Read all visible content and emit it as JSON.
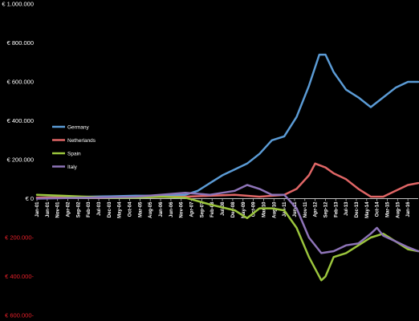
{
  "chart_data": {
    "type": "line",
    "title": "",
    "xlabel": "",
    "ylabel": "",
    "ylim": [
      -600000,
      1000000
    ],
    "grid": false,
    "legend_position": "left",
    "y_ticks": [
      {
        "value": 1000000,
        "label": "€ 1.000.000",
        "color": "#ffffff"
      },
      {
        "value": 800000,
        "label": "€ 800.000",
        "color": "#ffffff"
      },
      {
        "value": 600000,
        "label": "€ 600.000",
        "color": "#ffffff"
      },
      {
        "value": 400000,
        "label": "€ 400.000",
        "color": "#ffffff"
      },
      {
        "value": 200000,
        "label": "€ 200.000",
        "color": "#ffffff"
      },
      {
        "value": 0,
        "label": "€ 0",
        "color": "#ffffff"
      },
      {
        "value": -200000,
        "label": "€ 200.000-",
        "color": "#e8202a"
      },
      {
        "value": -400000,
        "label": "€ 400.000-",
        "color": "#e8202a"
      },
      {
        "value": -600000,
        "label": "€ 600.000-",
        "color": "#e8202a"
      }
    ],
    "x_ticks": [
      "Jan-01",
      "Jun-01",
      "Nov-01",
      "Apr-02",
      "Sep-02",
      "Feb-03",
      "Jul-03",
      "Dec-03",
      "May-04",
      "Oct-04",
      "Mar-05",
      "Aug-05",
      "Jan-06",
      "Jun-06",
      "Nov-06",
      "Apr-07",
      "Sep-07",
      "Feb-08",
      "Jul-08",
      "Dec-08",
      "May-09",
      "Oct-09",
      "Mar-10",
      "Aug-10",
      "Jan-11",
      "Jun-11",
      "Nov-11",
      "Apr-12",
      "Sep-12",
      "Feb-13",
      "Jul-13",
      "Dec-13",
      "May-14",
      "Oct-14",
      "Mar-15",
      "Aug-15",
      "Jan-16"
    ],
    "x_start": "Jan-01",
    "x_end": "Jun-16",
    "series": [
      {
        "name": "Germany",
        "color": "#5b9bd5",
        "points": [
          [
            "Jan-01",
            5000
          ],
          [
            "Jan-02",
            8000
          ],
          [
            "Jan-03",
            10000
          ],
          [
            "Jan-04",
            12000
          ],
          [
            "Jan-05",
            15000
          ],
          [
            "Jan-06",
            15000
          ],
          [
            "Jan-07",
            20000
          ],
          [
            "Jul-07",
            40000
          ],
          [
            "Jan-08",
            80000
          ],
          [
            "Jul-08",
            120000
          ],
          [
            "Jan-09",
            150000
          ],
          [
            "Jul-09",
            180000
          ],
          [
            "Jan-10",
            230000
          ],
          [
            "Jul-10",
            300000
          ],
          [
            "Jan-11",
            320000
          ],
          [
            "Jul-11",
            420000
          ],
          [
            "Jan-12",
            580000
          ],
          [
            "Jun-12",
            740000
          ],
          [
            "Sep-12",
            740000
          ],
          [
            "Jan-13",
            650000
          ],
          [
            "Jul-13",
            560000
          ],
          [
            "Jan-14",
            520000
          ],
          [
            "Jul-14",
            470000
          ],
          [
            "Jan-15",
            520000
          ],
          [
            "Jul-15",
            570000
          ],
          [
            "Jan-16",
            600000
          ],
          [
            "Jun-16",
            600000
          ]
        ]
      },
      {
        "name": "Netherlands",
        "color": "#e06666",
        "points": [
          [
            "Jan-01",
            5000
          ],
          [
            "Jan-03",
            5000
          ],
          [
            "Jan-05",
            8000
          ],
          [
            "Jan-07",
            10000
          ],
          [
            "Jan-08",
            15000
          ],
          [
            "Jan-09",
            20000
          ],
          [
            "Jan-10",
            10000
          ],
          [
            "Jan-11",
            20000
          ],
          [
            "Jul-11",
            50000
          ],
          [
            "Jan-12",
            120000
          ],
          [
            "Apr-12",
            180000
          ],
          [
            "Sep-12",
            160000
          ],
          [
            "Jan-13",
            130000
          ],
          [
            "Jul-13",
            100000
          ],
          [
            "Jan-14",
            50000
          ],
          [
            "Jul-14",
            10000
          ],
          [
            "Jan-15",
            10000
          ],
          [
            "Jul-15",
            40000
          ],
          [
            "Jan-16",
            70000
          ],
          [
            "Jun-16",
            80000
          ]
        ]
      },
      {
        "name": "Spain",
        "color": "#9bc53d",
        "points": [
          [
            "Jan-01",
            20000
          ],
          [
            "Jan-02",
            15000
          ],
          [
            "Jan-03",
            10000
          ],
          [
            "Jan-04",
            5000
          ],
          [
            "Jan-05",
            5000
          ],
          [
            "Jan-06",
            10000
          ],
          [
            "Jan-07",
            5000
          ],
          [
            "Jan-08",
            -30000
          ],
          [
            "Jan-09",
            -60000
          ],
          [
            "Jul-09",
            -100000
          ],
          [
            "Jan-10",
            -50000
          ],
          [
            "Jul-10",
            -50000
          ],
          [
            "Jan-11",
            -60000
          ],
          [
            "Jul-11",
            -150000
          ],
          [
            "Jan-12",
            -300000
          ],
          [
            "Jul-12",
            -420000
          ],
          [
            "Sep-12",
            -400000
          ],
          [
            "Jan-13",
            -300000
          ],
          [
            "Jul-13",
            -280000
          ],
          [
            "Jan-14",
            -240000
          ],
          [
            "Jul-14",
            -200000
          ],
          [
            "Jan-15",
            -180000
          ],
          [
            "Jul-15",
            -220000
          ],
          [
            "Jan-16",
            -260000
          ],
          [
            "Jun-16",
            -270000
          ]
        ]
      },
      {
        "name": "Italy",
        "color": "#8e74b8",
        "points": [
          [
            "Jan-01",
            0
          ],
          [
            "Jan-03",
            5000
          ],
          [
            "Jan-05",
            10000
          ],
          [
            "Jan-06",
            20000
          ],
          [
            "Jan-07",
            30000
          ],
          [
            "Jan-08",
            20000
          ],
          [
            "Jan-09",
            40000
          ],
          [
            "Jul-09",
            70000
          ],
          [
            "Jan-10",
            50000
          ],
          [
            "Jul-10",
            20000
          ],
          [
            "Jan-11",
            20000
          ],
          [
            "Jul-11",
            -50000
          ],
          [
            "Jan-12",
            -200000
          ],
          [
            "Jul-12",
            -280000
          ],
          [
            "Jan-13",
            -270000
          ],
          [
            "Jul-13",
            -240000
          ],
          [
            "Jan-14",
            -230000
          ],
          [
            "Jul-14",
            -180000
          ],
          [
            "Oct-14",
            -150000
          ],
          [
            "Jan-15",
            -190000
          ],
          [
            "Jul-15",
            -220000
          ],
          [
            "Jan-16",
            -250000
          ],
          [
            "Jun-16",
            -270000
          ]
        ]
      }
    ]
  }
}
